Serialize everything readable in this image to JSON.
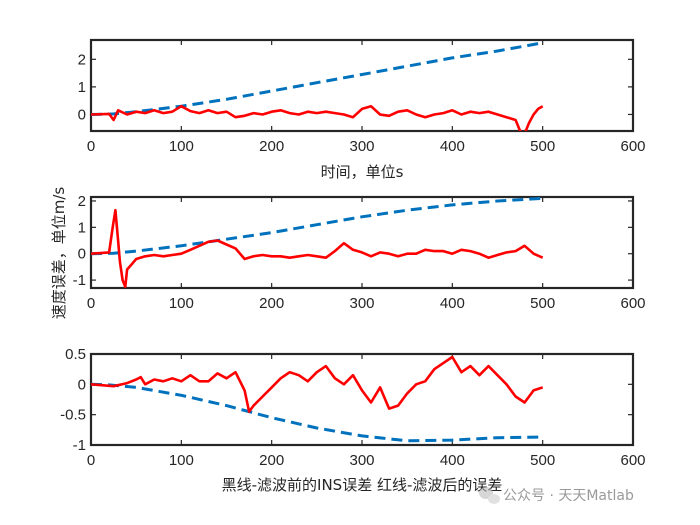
{
  "figure": {
    "background": "#ffffff",
    "axis_color": "#262626"
  },
  "watermark": {
    "text": "公众号 · 天天Matlab",
    "icon": "wechat-icon"
  },
  "chart_data": [
    {
      "type": "line",
      "xlabel": "时间，单位s",
      "ylabel": "",
      "xlim": [
        0,
        600
      ],
      "ylim": [
        -0.6,
        2.7
      ],
      "xticks": [
        0,
        100,
        200,
        300,
        400,
        500,
        600
      ],
      "yticks": [
        0,
        1,
        2
      ],
      "xtick_labels": [
        "0",
        "100",
        "200",
        "300",
        "400",
        "500",
        "600"
      ],
      "ytick_labels": [
        "0",
        "1",
        "2"
      ],
      "series": [
        {
          "name": "黑线-滤波前的INS误差",
          "color": "#0072BD",
          "style": "dashed",
          "x": [
            0,
            25,
            50,
            100,
            150,
            200,
            250,
            300,
            350,
            400,
            450,
            500
          ],
          "y": [
            0,
            0.02,
            0.1,
            0.3,
            0.55,
            0.85,
            1.15,
            1.45,
            1.75,
            2.05,
            2.3,
            2.6
          ]
        },
        {
          "name": "红线-滤波后的误差",
          "color": "#FF0000",
          "style": "solid",
          "x": [
            0,
            20,
            25,
            30,
            40,
            50,
            60,
            70,
            80,
            90,
            100,
            110,
            120,
            130,
            140,
            150,
            160,
            170,
            180,
            190,
            200,
            210,
            220,
            230,
            240,
            250,
            260,
            270,
            280,
            290,
            300,
            310,
            320,
            330,
            340,
            350,
            360,
            370,
            380,
            390,
            400,
            410,
            420,
            430,
            440,
            450,
            460,
            470,
            475,
            480,
            485,
            490,
            495,
            500
          ],
          "y": [
            0,
            0.02,
            -0.2,
            0.15,
            0.0,
            0.1,
            0.05,
            0.15,
            0.05,
            0.1,
            0.3,
            0.12,
            0.05,
            0.15,
            0.05,
            0.1,
            -0.1,
            -0.05,
            0.05,
            0.0,
            0.1,
            0.15,
            0.05,
            0.0,
            0.1,
            0.05,
            0.1,
            0.05,
            0.0,
            -0.1,
            0.2,
            0.3,
            0.0,
            -0.05,
            0.1,
            0.15,
            0.0,
            -0.1,
            0.0,
            0.05,
            0.15,
            0.0,
            0.1,
            0.05,
            0.1,
            0.0,
            -0.1,
            -0.2,
            -0.6,
            -0.7,
            -0.3,
            0.0,
            0.2,
            0.3
          ]
        }
      ]
    },
    {
      "type": "line",
      "xlabel": "",
      "ylabel": "速度误差，单位m/s",
      "xlim": [
        0,
        600
      ],
      "ylim": [
        -1.3,
        2.15
      ],
      "xticks": [
        0,
        100,
        200,
        300,
        400,
        500,
        600
      ],
      "yticks": [
        -1,
        0,
        1,
        2
      ],
      "xtick_labels": [
        "0",
        "100",
        "200",
        "300",
        "400",
        "500",
        "600"
      ],
      "ytick_labels": [
        "-1",
        "0",
        "1",
        "2"
      ],
      "series": [
        {
          "name": "黑线-滤波前的INS误差",
          "color": "#0072BD",
          "style": "dashed",
          "x": [
            0,
            25,
            50,
            100,
            150,
            200,
            250,
            300,
            350,
            400,
            450,
            500
          ],
          "y": [
            0,
            0.02,
            0.1,
            0.3,
            0.55,
            0.8,
            1.1,
            1.4,
            1.65,
            1.85,
            2.0,
            2.1
          ]
        },
        {
          "name": "红线-滤波后的误差",
          "color": "#FF0000",
          "style": "solid",
          "x": [
            0,
            20,
            24,
            27,
            30,
            32,
            35,
            38,
            40,
            45,
            50,
            60,
            70,
            80,
            90,
            100,
            110,
            120,
            130,
            140,
            150,
            160,
            170,
            180,
            190,
            200,
            210,
            220,
            230,
            240,
            250,
            260,
            270,
            280,
            290,
            300,
            310,
            320,
            330,
            340,
            350,
            360,
            370,
            380,
            390,
            400,
            410,
            420,
            430,
            440,
            450,
            460,
            470,
            480,
            490,
            500
          ],
          "y": [
            0,
            0.05,
            1.0,
            1.65,
            0.5,
            -0.3,
            -1.0,
            -1.25,
            -0.6,
            -0.4,
            -0.2,
            -0.1,
            -0.05,
            -0.1,
            -0.05,
            0.0,
            0.15,
            0.3,
            0.45,
            0.5,
            0.35,
            0.2,
            -0.2,
            -0.1,
            -0.05,
            -0.1,
            -0.1,
            -0.15,
            -0.1,
            -0.05,
            -0.1,
            -0.15,
            0.1,
            0.4,
            0.15,
            0.05,
            -0.1,
            0.05,
            0.0,
            -0.1,
            0.0,
            0.0,
            0.15,
            0.1,
            0.1,
            0.0,
            0.15,
            0.1,
            0.0,
            -0.15,
            -0.05,
            0.05,
            0.1,
            0.3,
            0.0,
            -0.15
          ]
        }
      ]
    },
    {
      "type": "line",
      "xlabel": "黑线-滤波前的INS误差   红线-滤波后的误差",
      "ylabel": "",
      "xlim": [
        0,
        600
      ],
      "ylim": [
        -1,
        0.5
      ],
      "xticks": [
        0,
        100,
        200,
        300,
        400,
        500,
        600
      ],
      "yticks": [
        -1,
        -0.5,
        0,
        0.5
      ],
      "xtick_labels": [
        "0",
        "100",
        "200",
        "300",
        "400",
        "500",
        "600"
      ],
      "ytick_labels": [
        "-1",
        "-0.5",
        "0",
        "0.5"
      ],
      "series": [
        {
          "name": "黑线-滤波前的INS误差",
          "color": "#0072BD",
          "style": "dashed",
          "x": [
            0,
            20,
            50,
            100,
            150,
            200,
            250,
            300,
            350,
            400,
            450,
            500
          ],
          "y": [
            0,
            -0.01,
            -0.05,
            -0.18,
            -0.35,
            -0.55,
            -0.72,
            -0.85,
            -0.93,
            -0.92,
            -0.88,
            -0.87
          ]
        },
        {
          "name": "红线-滤波后的误差",
          "color": "#FF0000",
          "style": "solid",
          "x": [
            0,
            25,
            40,
            50,
            55,
            60,
            70,
            80,
            90,
            100,
            110,
            120,
            130,
            140,
            150,
            160,
            170,
            175,
            180,
            190,
            200,
            210,
            220,
            230,
            240,
            250,
            260,
            270,
            280,
            290,
            300,
            310,
            320,
            330,
            340,
            350,
            360,
            370,
            380,
            390,
            400,
            410,
            420,
            430,
            440,
            450,
            460,
            470,
            480,
            490,
            500
          ],
          "y": [
            0,
            -0.03,
            0.02,
            0.08,
            0.12,
            0.0,
            0.08,
            0.05,
            0.1,
            0.05,
            0.15,
            0.05,
            0.05,
            0.18,
            0.1,
            0.2,
            -0.1,
            -0.45,
            -0.35,
            -0.2,
            -0.05,
            0.1,
            0.2,
            0.15,
            0.05,
            0.2,
            0.3,
            0.1,
            0.0,
            0.15,
            -0.1,
            -0.3,
            -0.05,
            -0.4,
            -0.35,
            -0.15,
            0.0,
            0.05,
            0.25,
            0.35,
            0.45,
            0.2,
            0.3,
            0.15,
            0.3,
            0.15,
            0.0,
            -0.2,
            -0.3,
            -0.1,
            -0.05
          ]
        }
      ]
    }
  ]
}
